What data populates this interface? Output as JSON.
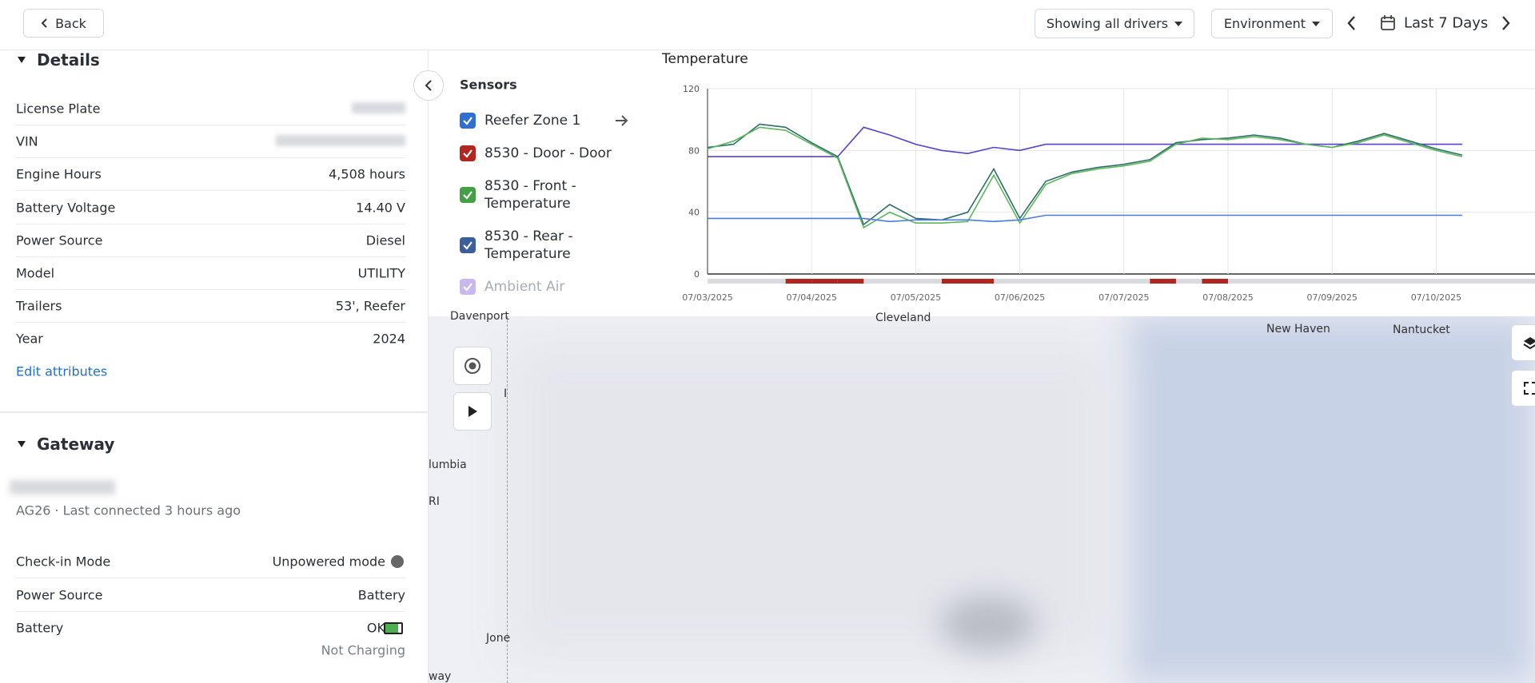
{
  "toolbar": {
    "back": "Back",
    "drivers": "Showing all drivers",
    "environment": "Environment",
    "range": "Last 7 Days"
  },
  "details": {
    "title": "Details",
    "rows": [
      {
        "label": "License Plate"
      },
      {
        "label": "VIN"
      },
      {
        "label": "Engine Hours",
        "value": "4,508 hours"
      },
      {
        "label": "Battery Voltage",
        "value": "14.40 V"
      },
      {
        "label": "Power Source",
        "value": "Diesel"
      },
      {
        "label": "Model",
        "value": "UTILITY"
      },
      {
        "label": "Trailers",
        "value": "53', Reefer"
      },
      {
        "label": "Year",
        "value": "2024"
      }
    ],
    "edit": "Edit attributes"
  },
  "gateway": {
    "title": "Gateway",
    "status": "AG26 · Last connected 3 hours ago",
    "rows": [
      {
        "label": "Check-in Mode",
        "value": "Unpowered mode"
      },
      {
        "label": "Power Source",
        "value": "Battery"
      },
      {
        "label": "Battery",
        "value": "OK"
      }
    ],
    "battery_note": "Not Charging"
  },
  "sensors": {
    "title": "Sensors"
  },
  "map": {
    "labels": [
      "Davenport",
      "Cleveland",
      "New Haven",
      "Nantucket",
      "lumbia",
      "RI",
      "Jone",
      "way",
      "I"
    ]
  },
  "chart_data": {
    "type": "line",
    "title": "Temperature",
    "categories": [
      "07/03/2025",
      null,
      null,
      null,
      "07/04/2025",
      null,
      null,
      null,
      "07/05/2025",
      null,
      null,
      null,
      "07/06/2025",
      null,
      null,
      null,
      "07/07/2025",
      null,
      null,
      null,
      "07/08/2025",
      null,
      null,
      null,
      "07/09/2025",
      null,
      null,
      null,
      "07/10/2025",
      null,
      null,
      null
    ],
    "ylim": [
      0,
      120
    ],
    "yticks": [
      0,
      40,
      80,
      120
    ],
    "grid": true,
    "series": [
      {
        "name": "Reefer Zone 1",
        "color": "#2d6e6a",
        "check_color": "#2f6fd1",
        "values": [
          82,
          84,
          97,
          95,
          85,
          76,
          32,
          45,
          36,
          35,
          40,
          68,
          36,
          60,
          66,
          69,
          71,
          74,
          85,
          87,
          88,
          90,
          88,
          84,
          82,
          86,
          91,
          86,
          81,
          77,
          null,
          null
        ]
      },
      {
        "name": "8530 - Door - Door",
        "type": "strip",
        "color": "#b3261e",
        "check_color": "#b3261e",
        "values": [
          0,
          0,
          0,
          1,
          1,
          1,
          0,
          0,
          0,
          1,
          1,
          0,
          0,
          0,
          0,
          0,
          0,
          1,
          0,
          1,
          0,
          0,
          0,
          0,
          0,
          0,
          0,
          0,
          0,
          0,
          null,
          null
        ]
      },
      {
        "name": "8530 - Front - Temperature",
        "color": "#5cb85c",
        "check_color": "#43a047",
        "values": [
          81,
          86,
          95,
          93,
          84,
          75,
          30,
          40,
          33,
          33,
          34,
          64,
          33,
          58,
          65,
          68,
          70,
          73,
          84,
          88,
          87,
          89,
          87,
          84,
          82,
          85,
          90,
          85,
          80,
          76,
          null,
          null
        ]
      },
      {
        "name": "8530 - Rear - Temperature",
        "color": "#4a7ce0",
        "check_color": "#3b5f9e",
        "values": [
          36,
          36,
          36,
          36,
          36,
          36,
          36,
          34,
          35,
          35,
          35,
          34,
          35,
          38,
          38,
          38,
          38,
          38,
          38,
          38,
          38,
          38,
          38,
          38,
          38,
          38,
          38,
          38,
          38,
          38,
          null,
          null
        ]
      },
      {
        "name": "Ambient Air",
        "color": "#5a3fd0",
        "check_color": "#c9b8f0",
        "faded": true,
        "values": [
          76,
          76,
          76,
          76,
          76,
          76,
          95,
          90,
          84,
          80,
          78,
          82,
          80,
          84,
          84,
          84,
          84,
          84,
          84,
          84,
          84,
          84,
          84,
          84,
          84,
          84,
          84,
          84,
          84,
          84,
          null,
          null
        ]
      }
    ]
  }
}
